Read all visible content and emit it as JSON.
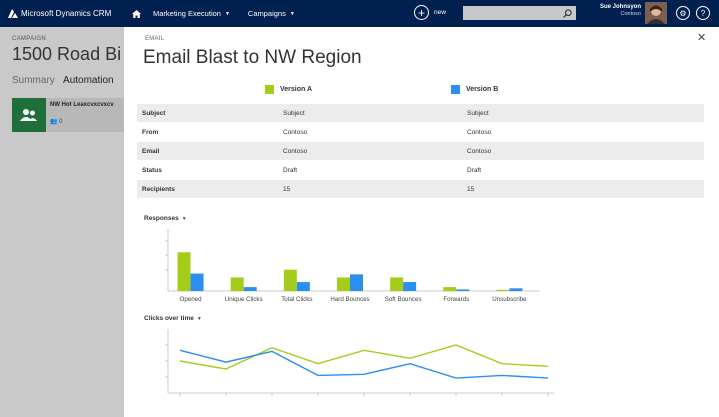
{
  "topbar": {
    "app_name": "Microsoft Dynamics CRM",
    "nav_items": [
      {
        "label": "Marketing Execution"
      },
      {
        "label": "Campaigns"
      }
    ],
    "new_label": "new",
    "user_name": "Sue Johnsyon",
    "user_org": "Contoso"
  },
  "background": {
    "section_label": "CAMPAIGN",
    "title": "1500 Road Bi",
    "tab_summary": "Summary",
    "tab_automation": "Automation",
    "card_title": "NW Hot Leaxcvxcvxcv",
    "card_count": "0"
  },
  "dialog": {
    "section_label": "EMAIL",
    "title": "Email Blast to NW Region",
    "close_glyph": "✕",
    "versions": [
      {
        "name": "Version A",
        "color": "#a6cc1b"
      },
      {
        "name": "Version B",
        "color": "#2b8ff0"
      }
    ],
    "rows": [
      {
        "label": "Subject",
        "a": "Subject",
        "b": "Subject"
      },
      {
        "label": "From",
        "a": "Contoso",
        "b": "Contoso"
      },
      {
        "label": "Email",
        "a": "Contoso",
        "b": "Contoso"
      },
      {
        "label": "Status",
        "a": "Draft",
        "b": "Draft"
      },
      {
        "label": "Recipients",
        "a": "15",
        "b": "15"
      }
    ],
    "responses_label": "Responses",
    "clicks_label": "Clicks over time"
  },
  "chart_data": [
    {
      "type": "bar",
      "categories": [
        "Opened",
        "Unique Clicks",
        "Total Clicks",
        "Hard Bounces",
        "Soft Bounces",
        "Forwards",
        "Unsubscribe"
      ],
      "series": [
        {
          "name": "Version A",
          "values": [
            10,
            3.5,
            5.5,
            3.5,
            3.5,
            1,
            0.3
          ]
        },
        {
          "name": "Version B",
          "values": [
            4.5,
            1,
            2.3,
            4.3,
            2.3,
            0.4,
            0.7
          ]
        }
      ],
      "ylim": [
        0,
        16
      ],
      "grid": false
    },
    {
      "type": "line",
      "x": [
        1,
        2,
        3,
        4,
        5,
        6,
        7,
        8,
        9
      ],
      "series": [
        {
          "name": "Version A",
          "values": [
            6,
            4.5,
            8.5,
            5.5,
            8,
            6.5,
            9,
            5.5,
            5
          ]
        },
        {
          "name": "Version B",
          "values": [
            8,
            5.8,
            7.8,
            3.3,
            3.5,
            5.5,
            2.8,
            3.3,
            2.8
          ]
        }
      ],
      "ylim": [
        0,
        12
      ],
      "grid": false
    }
  ]
}
